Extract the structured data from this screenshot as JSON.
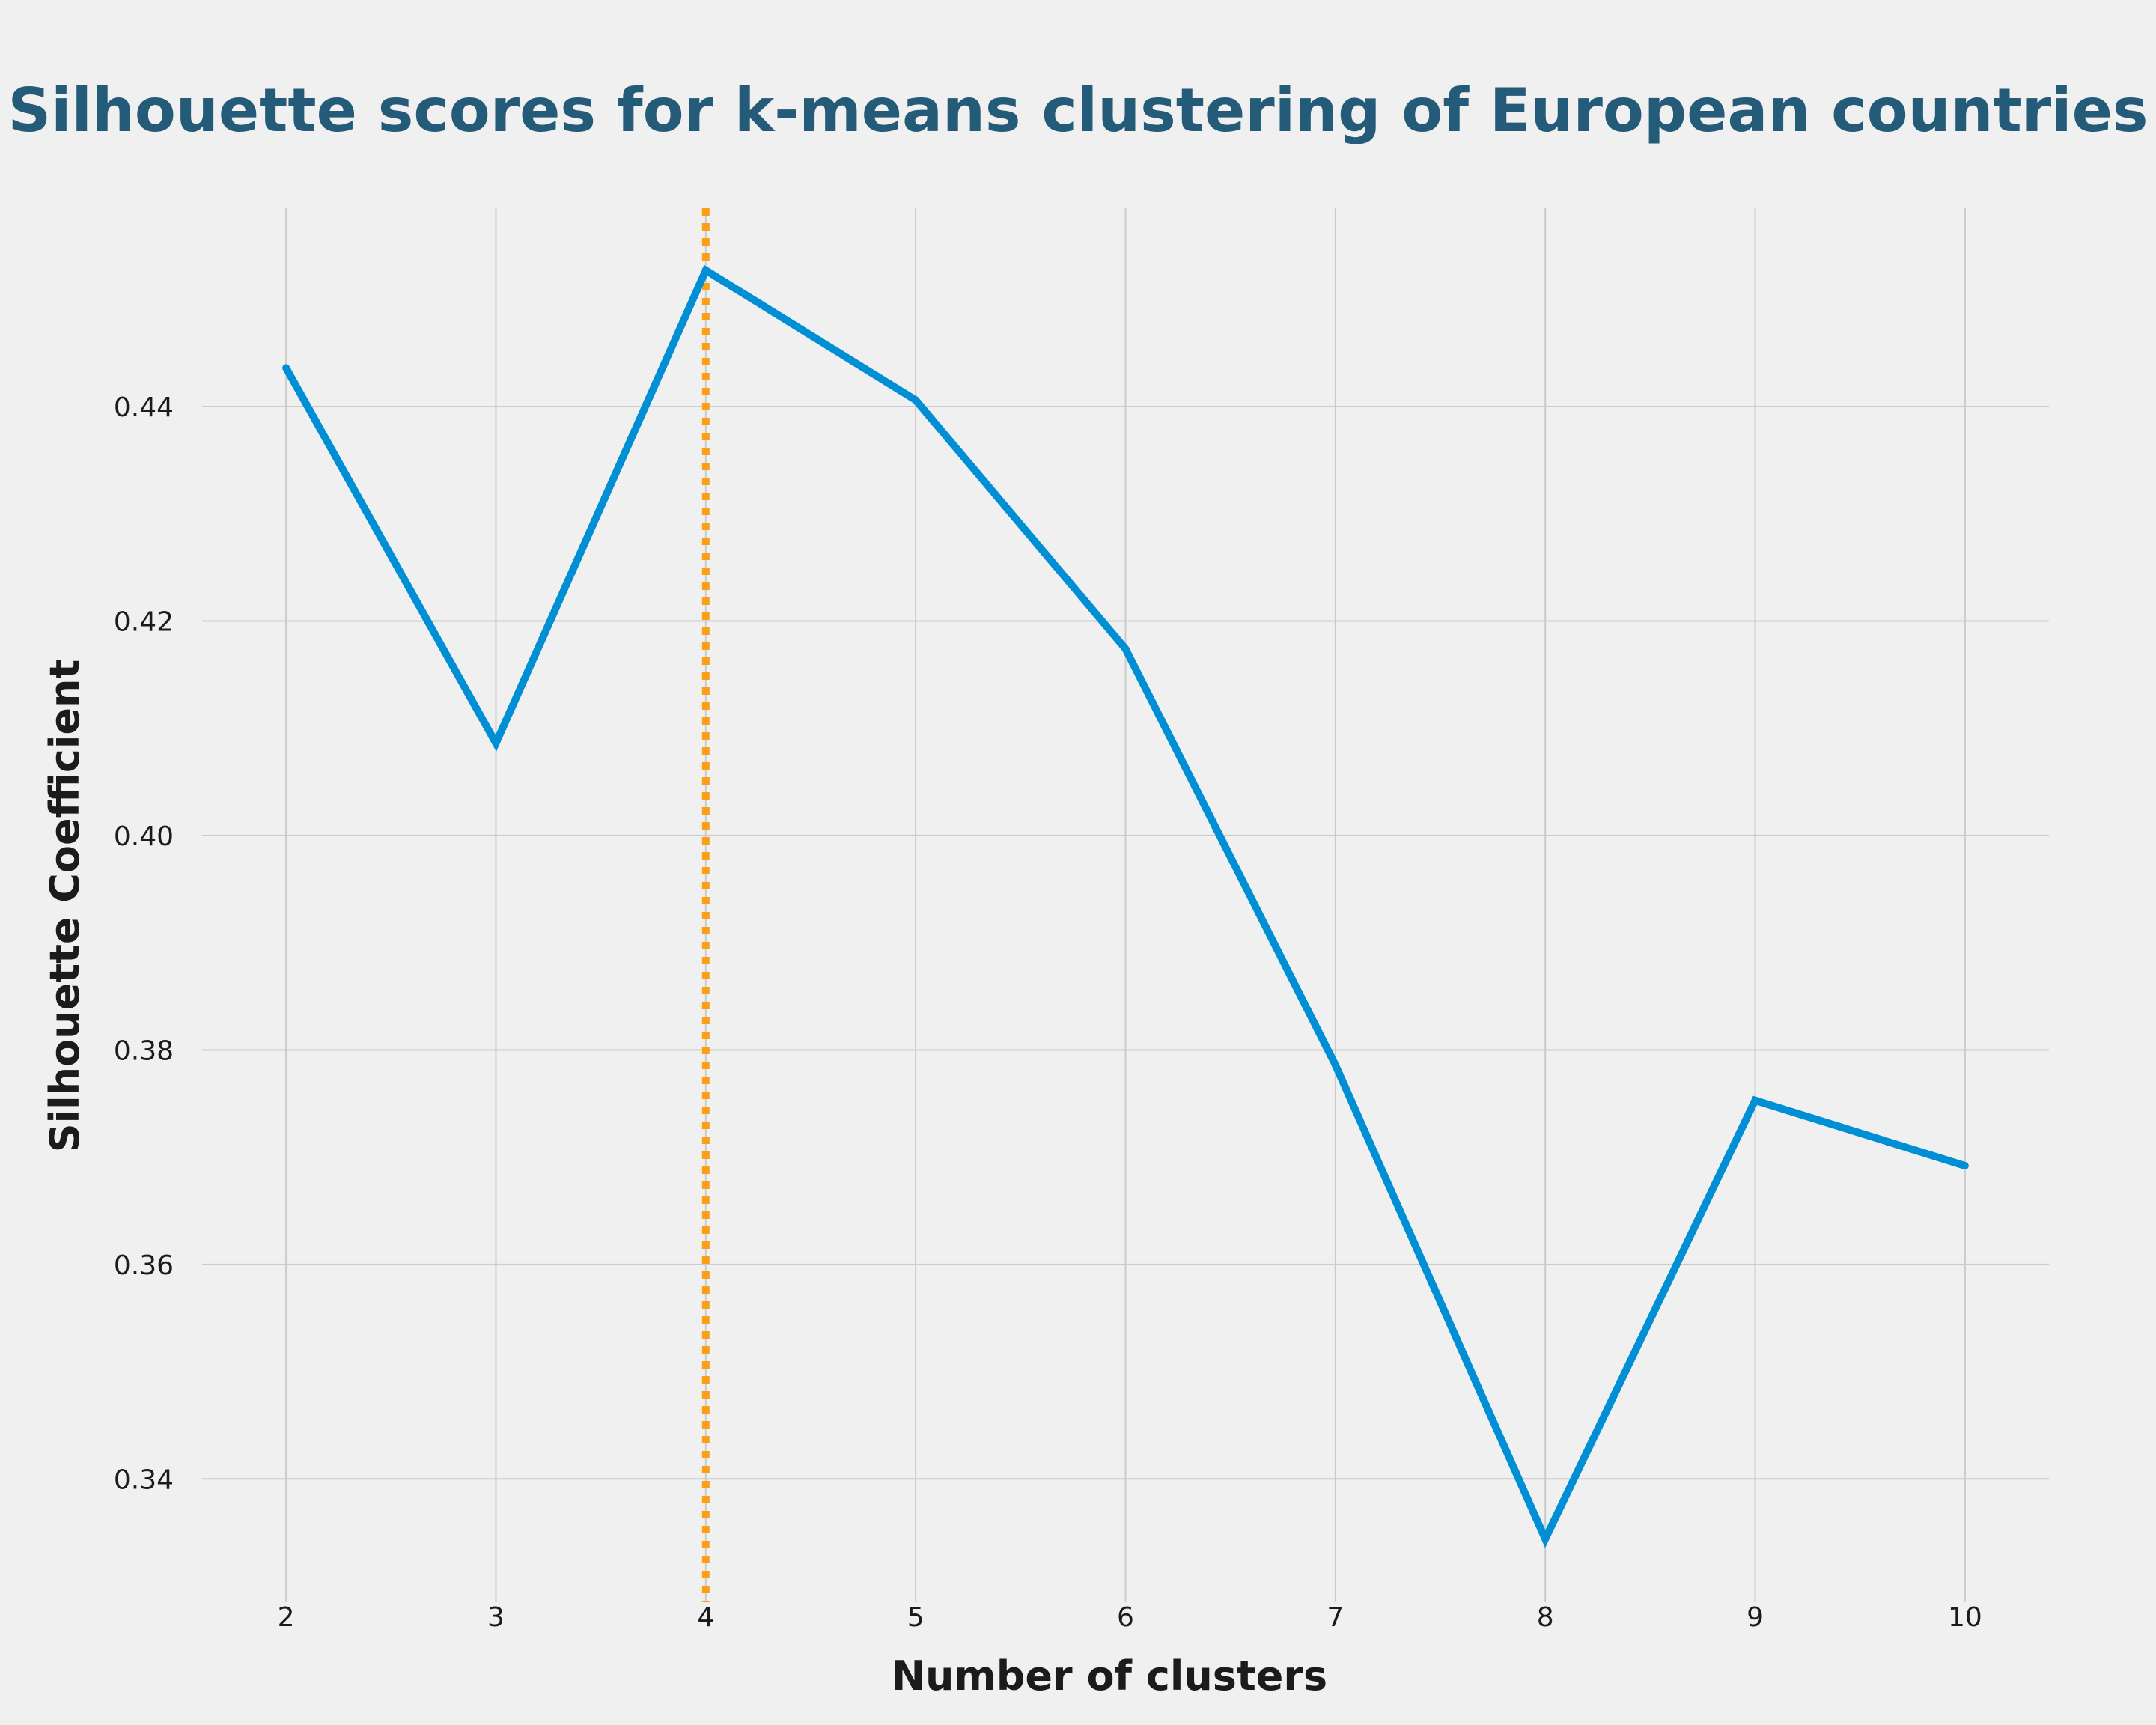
{
  "chart_data": {
    "type": "line",
    "title": "Silhouette scores for k-means clustering of European countries",
    "xlabel": "Number of clusters",
    "ylabel": "Silhouette Coefficient",
    "x": [
      2,
      3,
      4,
      5,
      6,
      7,
      8,
      9,
      10
    ],
    "series": [
      {
        "values": [
          0.4436,
          0.4086,
          0.4527,
          0.4406,
          0.4174,
          0.3786,
          0.3344,
          0.3753,
          0.3692
        ],
        "color": "#008fd5"
      }
    ],
    "x_ticks": [
      "2",
      "3",
      "4",
      "5",
      "6",
      "7",
      "8",
      "9",
      "10"
    ],
    "y_ticks": [
      "0.34",
      "0.36",
      "0.38",
      "0.40",
      "0.42",
      "0.44"
    ],
    "y_tick_values": [
      0.34,
      0.36,
      0.38,
      0.4,
      0.42,
      0.44
    ],
    "xlim": [
      1.6,
      10.4
    ],
    "ylim": [
      0.3285,
      0.4585
    ],
    "vertical_marker": {
      "x": 4,
      "color": "#fc9f14",
      "style": "dotted"
    },
    "grid": true,
    "legend": false
  }
}
